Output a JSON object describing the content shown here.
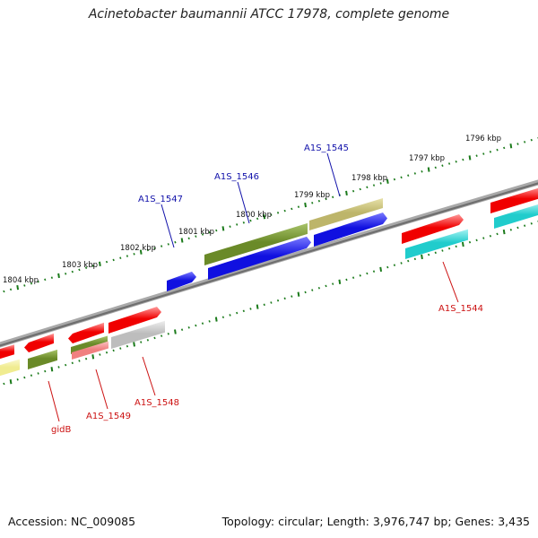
{
  "title": "Acinetobacter baumannii ATCC 17978, complete genome",
  "footer": {
    "accession": "Accession: NC_009085",
    "summary": "Topology: circular; Length: 3,976,747 bp; Genes: 3,435"
  },
  "colors": {
    "backbone": "#808080",
    "tick": "#1a7a1a",
    "label_top": "#1111aa",
    "label_bottom": "#cc1111",
    "red": "#f00000",
    "blue": "#1010e0",
    "olive": "#6a8a28",
    "khaki": "#bdb56a",
    "cyan": "#20cccc",
    "grey": "#bdbdbd",
    "yellow": "#f0ec90",
    "salmon": "#f08080"
  },
  "kbp_labels": [
    "1796 kbp",
    "1797 kbp",
    "1798 kbp",
    "1799 kbp",
    "1800 kbp",
    "1801 kbp",
    "1802 kbp",
    "1803 kbp",
    "1804 kbp"
  ],
  "gene_labels_top": [
    "A1S_1545",
    "A1S_1546",
    "A1S_1547"
  ],
  "gene_labels_bottom": [
    "A1S_1544",
    "A1S_1548",
    "A1S_1549",
    "gidB"
  ]
}
